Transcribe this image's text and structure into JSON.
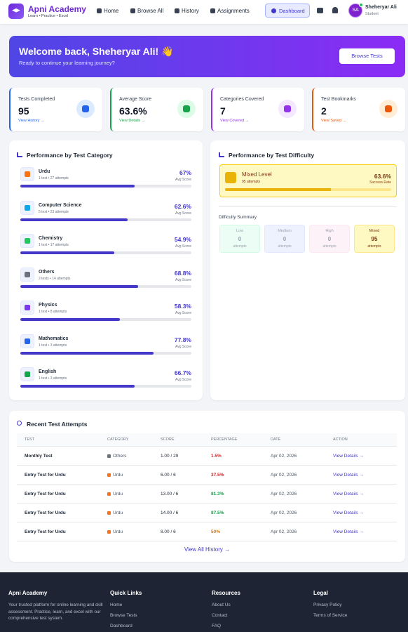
{
  "navbar": {
    "brand": "Apni Academy",
    "tagline": "Learn • Practice • Excel",
    "links": [
      "Home",
      "Browse All",
      "History",
      "Assignments"
    ],
    "active": "Dashboard",
    "user": {
      "initials": "SA",
      "name": "Sheheryar Ali",
      "role": "Student"
    }
  },
  "hero": {
    "title": "Welcome back, Sheheryar Ali! 👋",
    "subtitle": "Ready to continue your learning journey?",
    "button": "Browse Tests"
  },
  "stats": [
    {
      "label": "Tests Completed",
      "value": 95,
      "link": "View History →",
      "color": "#2563eb",
      "tint": "#dbeafe"
    },
    {
      "label": "Average Score",
      "value": "63.6%",
      "link": "View Details →",
      "color": "#16a34a",
      "tint": "#dcfce7"
    },
    {
      "label": "Categories Covered",
      "value": 7,
      "link": "View Covered →",
      "color": "#9333ea",
      "tint": "#f3e8ff"
    },
    {
      "label": "Test Bookmarks",
      "value": 2,
      "link": "View Saved →",
      "color": "#ea580c",
      "tint": "#ffedd5"
    }
  ],
  "category_panel": {
    "title": "Performance by Test Category",
    "score_caption": "Avg Score",
    "items": [
      {
        "name": "Urdu",
        "detail": "1 test • 27 attempts",
        "score": 67,
        "score_label": "67%"
      },
      {
        "name": "Computer Science",
        "detail": "5 test • 23 attempts",
        "score": 62.6,
        "score_label": "62.6%"
      },
      {
        "name": "Chemistry",
        "detail": "1 test • 17 attempts",
        "score": 54.9,
        "score_label": "54.9%"
      },
      {
        "name": "Others",
        "detail": "2 tests • 14 attempts",
        "score": 68.8,
        "score_label": "68.8%"
      },
      {
        "name": "Physics",
        "detail": "1 test • 8 attempts",
        "score": 58.3,
        "score_label": "58.3%"
      },
      {
        "name": "Mathematics",
        "detail": "1 test • 3 attempts",
        "score": 77.8,
        "score_label": "77.8%"
      },
      {
        "name": "English",
        "detail": "1 test • 3 attempts",
        "score": 66.7,
        "score_label": "66.7%"
      }
    ]
  },
  "difficulty_panel": {
    "title": "Performance by Test Difficulty",
    "featured": {
      "name": "Mixed Level",
      "detail": "95 attempts",
      "score": 63.6,
      "score_label": "63.6%",
      "caption": "Success Rate"
    },
    "summary_title": "Difficulty Summary",
    "unit": "attempts",
    "levels": [
      {
        "name": "Low",
        "count": 0,
        "bg": "#ecfdf5",
        "border": "#d1fae5",
        "color": "#9ca3af"
      },
      {
        "name": "Medium",
        "count": 0,
        "bg": "#eef2ff",
        "border": "#e0e7ff",
        "color": "#9ca3af"
      },
      {
        "name": "High",
        "count": 0,
        "bg": "#fdf2f8",
        "border": "#fce7f3",
        "color": "#9ca3af"
      },
      {
        "name": "Mixed",
        "count": 95,
        "bg": "#fef9c3",
        "border": "#fde68a",
        "color": "#78350f"
      }
    ]
  },
  "recent": {
    "title": "Recent Test Attempts",
    "columns": [
      "TEST",
      "CATEGORY",
      "SCORE",
      "PERCENTAGE",
      "DATE",
      "ACTION"
    ],
    "rows": [
      {
        "cells": [
          "Monthly Test",
          "Others",
          "1.00 / 29",
          "1.5%",
          "Apr 02, 2026",
          "View Details →"
        ],
        "color": "#dc2626"
      },
      {
        "cells": [
          "Entry Test for Urdu",
          "Urdu",
          "6.00 / 6",
          "37.5%",
          "Apr 02, 2026",
          "View Details →"
        ],
        "color": "#dc2626"
      },
      {
        "cells": [
          "Entry Test for Urdu",
          "Urdu",
          "13.00 / 6",
          "81.3%",
          "Apr 02, 2026",
          "View Details →"
        ],
        "color": "#16a34a"
      },
      {
        "cells": [
          "Entry Test for Urdu",
          "Urdu",
          "14.00 / 6",
          "87.5%",
          "Apr 02, 2026",
          "View Details →"
        ],
        "color": "#16a34a"
      },
      {
        "cells": [
          "Entry Test for Urdu",
          "Urdu",
          "8.00 / 6",
          "50%",
          "Apr 02, 2026",
          "View Details →"
        ],
        "color": "#d97706"
      }
    ],
    "footer_link": "View All History →"
  },
  "footer": {
    "about": {
      "title": "Apni Academy",
      "text": "Your trusted platform for online learning and skill assessment. Practice, learn, and excel with our comprehensive test system."
    },
    "columns": [
      {
        "title": "Quick Links",
        "links": [
          "Home",
          "Browse Tests",
          "Dashboard"
        ]
      },
      {
        "title": "Resources",
        "links": [
          "About Us",
          "Contact",
          "FAQ"
        ]
      },
      {
        "title": "Legal",
        "links": [
          "Privacy Policy",
          "Terms of Service"
        ]
      }
    ]
  }
}
